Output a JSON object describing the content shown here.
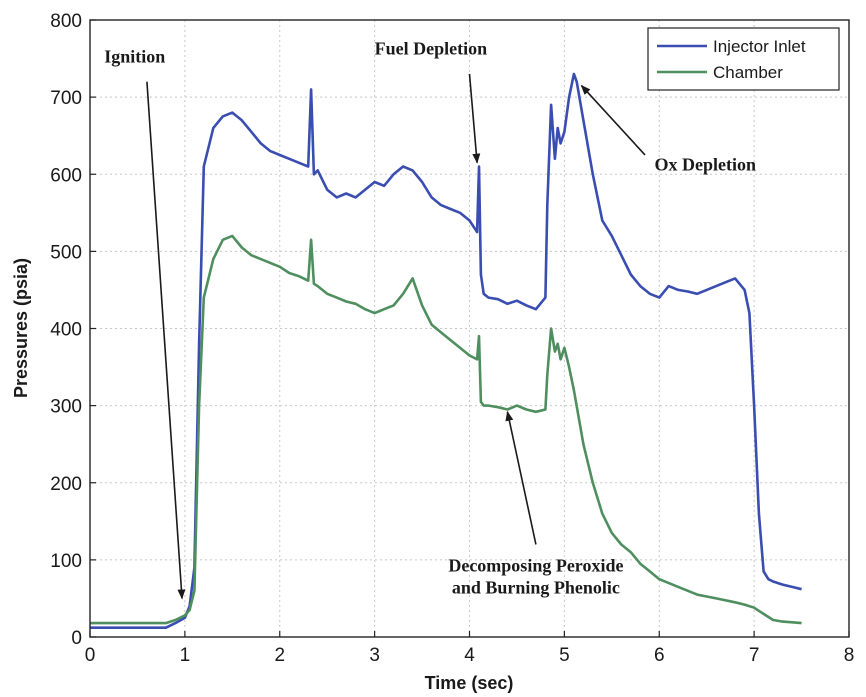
{
  "chart_data": {
    "type": "line",
    "xlabel": "Time (sec)",
    "ylabel": "Pressures (psia)",
    "xlim": [
      0,
      8
    ],
    "ylim": [
      0,
      800
    ],
    "xticks": [
      "0",
      "1",
      "2",
      "3",
      "4",
      "5",
      "6",
      "7",
      "8"
    ],
    "yticks": [
      "0",
      "100",
      "200",
      "300",
      "400",
      "500",
      "600",
      "700",
      "800"
    ],
    "grid": true,
    "legend_position": "top-right",
    "series": [
      {
        "name": "Injector Inlet",
        "color": "#3a4db0",
        "x": [
          0,
          0.5,
          0.8,
          0.9,
          1.0,
          1.05,
          1.1,
          1.15,
          1.2,
          1.3,
          1.4,
          1.5,
          1.6,
          1.7,
          1.8,
          1.9,
          2.0,
          2.1,
          2.2,
          2.3,
          2.33,
          2.36,
          2.4,
          2.5,
          2.6,
          2.7,
          2.8,
          2.9,
          3.0,
          3.1,
          3.2,
          3.3,
          3.4,
          3.5,
          3.6,
          3.7,
          3.8,
          3.9,
          4.0,
          4.08,
          4.1,
          4.12,
          4.15,
          4.2,
          4.3,
          4.4,
          4.5,
          4.6,
          4.7,
          4.8,
          4.82,
          4.86,
          4.9,
          4.93,
          4.96,
          5.0,
          5.05,
          5.1,
          5.13,
          5.2,
          5.3,
          5.4,
          5.5,
          5.6,
          5.7,
          5.8,
          5.9,
          6.0,
          6.1,
          6.2,
          6.3,
          6.4,
          6.5,
          6.6,
          6.7,
          6.8,
          6.9,
          6.95,
          7.0,
          7.05,
          7.1,
          7.15,
          7.2,
          7.3,
          7.4,
          7.5
        ],
        "values": [
          12,
          12,
          12,
          18,
          25,
          40,
          90,
          380,
          610,
          660,
          675,
          680,
          670,
          655,
          640,
          630,
          625,
          620,
          615,
          610,
          710,
          600,
          605,
          580,
          570,
          575,
          570,
          580,
          590,
          585,
          600,
          610,
          605,
          590,
          570,
          560,
          555,
          550,
          540,
          525,
          610,
          470,
          445,
          440,
          438,
          432,
          436,
          430,
          425,
          440,
          560,
          690,
          620,
          660,
          640,
          655,
          700,
          730,
          720,
          670,
          600,
          540,
          520,
          495,
          470,
          455,
          445,
          440,
          455,
          450,
          448,
          445,
          450,
          455,
          460,
          465,
          450,
          420,
          300,
          160,
          85,
          75,
          72,
          68,
          65,
          62
        ]
      },
      {
        "name": "Chamber",
        "color": "#4f8f5f",
        "x": [
          0,
          0.5,
          0.8,
          0.9,
          1.0,
          1.05,
          1.1,
          1.15,
          1.2,
          1.3,
          1.4,
          1.5,
          1.6,
          1.7,
          1.8,
          1.9,
          2.0,
          2.1,
          2.2,
          2.3,
          2.33,
          2.36,
          2.4,
          2.5,
          2.6,
          2.7,
          2.8,
          2.9,
          3.0,
          3.1,
          3.2,
          3.3,
          3.4,
          3.5,
          3.6,
          3.7,
          3.8,
          3.9,
          4.0,
          4.08,
          4.1,
          4.12,
          4.15,
          4.2,
          4.3,
          4.4,
          4.5,
          4.6,
          4.7,
          4.8,
          4.82,
          4.86,
          4.9,
          4.93,
          4.96,
          5.0,
          5.05,
          5.1,
          5.2,
          5.3,
          5.4,
          5.5,
          5.6,
          5.7,
          5.8,
          5.9,
          6.0,
          6.2,
          6.4,
          6.6,
          6.8,
          6.9,
          7.0,
          7.1,
          7.2,
          7.3,
          7.5
        ],
        "values": [
          18,
          18,
          18,
          22,
          28,
          35,
          60,
          300,
          440,
          490,
          515,
          520,
          505,
          495,
          490,
          485,
          480,
          472,
          468,
          462,
          515,
          458,
          455,
          445,
          440,
          435,
          432,
          425,
          420,
          425,
          430,
          445,
          465,
          430,
          405,
          395,
          385,
          375,
          365,
          360,
          390,
          305,
          300,
          300,
          298,
          295,
          300,
          295,
          292,
          295,
          340,
          400,
          370,
          380,
          360,
          375,
          350,
          320,
          250,
          200,
          160,
          135,
          120,
          110,
          95,
          85,
          75,
          65,
          55,
          50,
          45,
          42,
          38,
          30,
          22,
          20,
          18
        ]
      }
    ],
    "annotations": [
      {
        "id": "ignition",
        "lines": [
          "Ignition"
        ],
        "x": 0.15,
        "y": 745,
        "arrow_from": [
          0.6,
          720
        ],
        "arrow_to": [
          0.97,
          50
        ],
        "anchor": "start"
      },
      {
        "id": "fuel",
        "lines": [
          "Fuel Depletion"
        ],
        "x": 3.0,
        "y": 755,
        "arrow_from": [
          4.0,
          730
        ],
        "arrow_to": [
          4.08,
          615
        ],
        "anchor": "start"
      },
      {
        "id": "ox",
        "lines": [
          "Ox Depletion"
        ],
        "x": 5.95,
        "y": 605,
        "arrow_from": [
          5.85,
          625
        ],
        "arrow_to": [
          5.18,
          715
        ],
        "anchor": "start"
      },
      {
        "id": "peroxide",
        "lines": [
          "Decomposing Peroxide",
          "and Burning Phenolic"
        ],
        "x": 4.7,
        "y": 85,
        "arrow_from": [
          4.7,
          120
        ],
        "arrow_to": [
          4.4,
          292
        ],
        "anchor": "middle"
      }
    ]
  }
}
